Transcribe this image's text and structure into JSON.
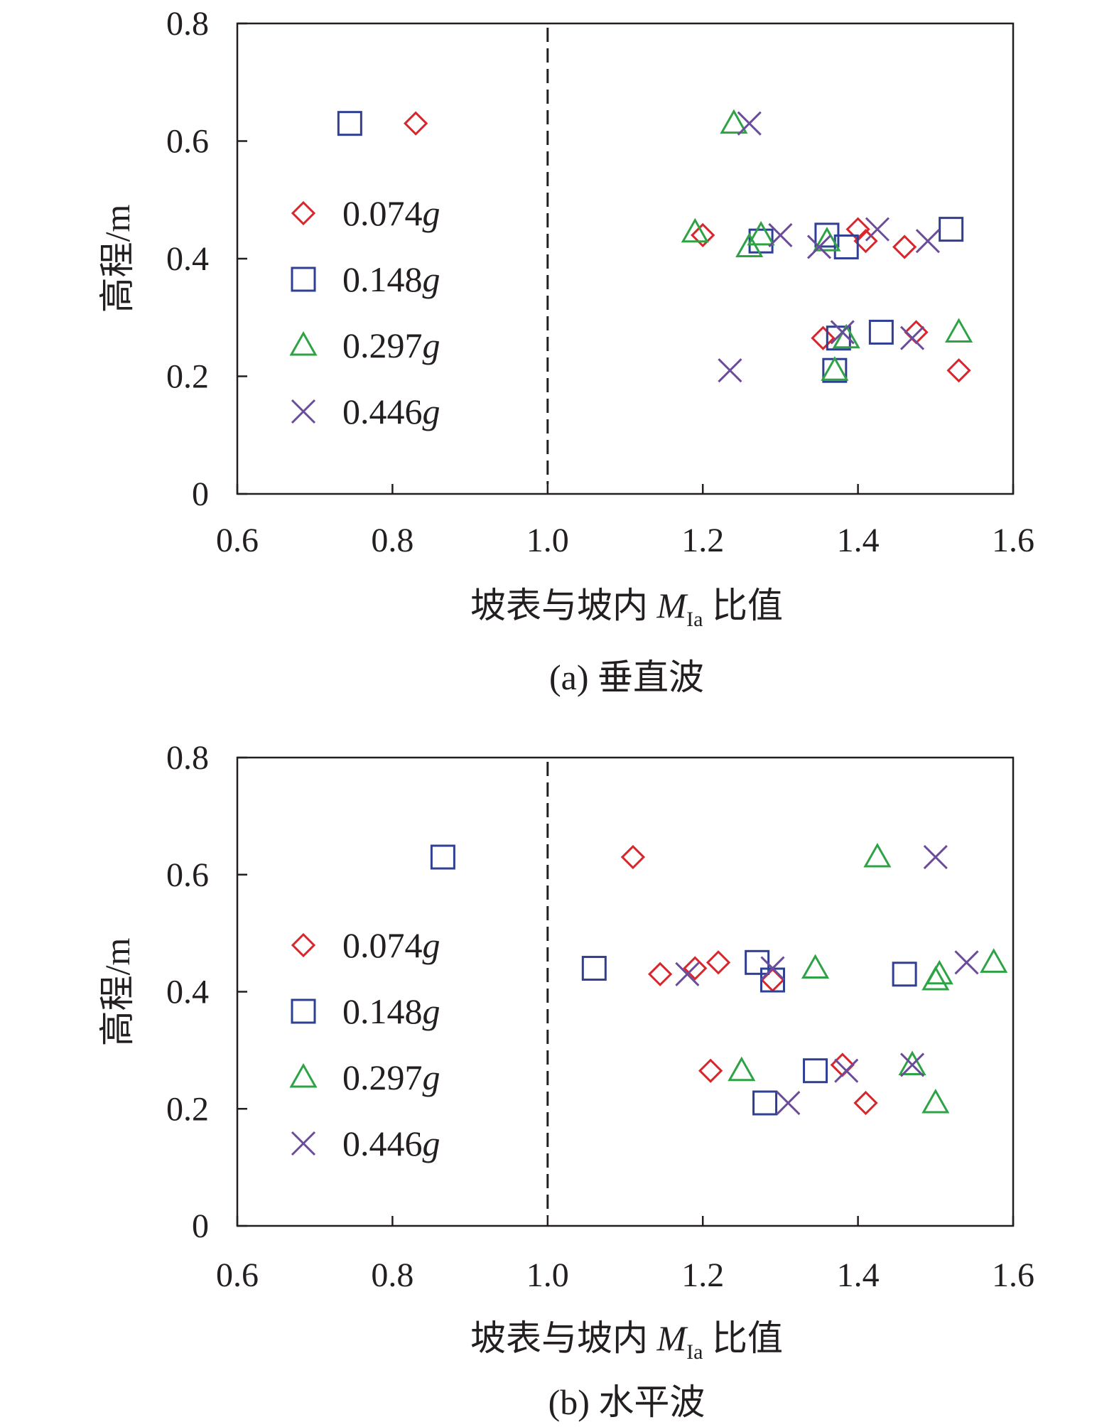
{
  "chart_data": [
    {
      "type": "scatter",
      "caption": "(a) 垂直波",
      "xlabel_prefix": "坡表与坡内 ",
      "xlabel_var": "M",
      "xlabel_sub": "Ia",
      "xlabel_suffix": " 比值",
      "ylabel": "高程/m",
      "xlim": [
        0.6,
        1.6
      ],
      "ylim": [
        0,
        0.8
      ],
      "xticks": [
        "0.6",
        "0.8",
        "1.0",
        "1.2",
        "1.4",
        "1.6"
      ],
      "yticks": [
        "0",
        "0.2",
        "0.4",
        "0.6",
        "0.8"
      ],
      "reference_line_x": 1.0,
      "legend_position": "left",
      "series": [
        {
          "name_value": "0.074",
          "name_unit": "g",
          "marker": "diamond",
          "color": "#d9262c",
          "points": [
            [
              0.83,
              0.63
            ],
            [
              1.2,
              0.44
            ],
            [
              1.4,
              0.45
            ],
            [
              1.41,
              0.43
            ],
            [
              1.46,
              0.42
            ],
            [
              1.355,
              0.265
            ],
            [
              1.475,
              0.275
            ],
            [
              1.53,
              0.21
            ]
          ]
        },
        {
          "name_value": "0.148",
          "name_unit": "g",
          "marker": "square",
          "color": "#2e3f94",
          "points": [
            [
              0.745,
              0.63
            ],
            [
              1.275,
              0.43
            ],
            [
              1.36,
              0.44
            ],
            [
              1.385,
              0.42
            ],
            [
              1.52,
              0.45
            ],
            [
              1.375,
              0.265
            ],
            [
              1.43,
              0.275
            ],
            [
              1.37,
              0.21
            ]
          ]
        },
        {
          "name_value": "0.297",
          "name_unit": "g",
          "marker": "triangle",
          "color": "#2ea345",
          "points": [
            [
              1.24,
              0.63
            ],
            [
              1.19,
              0.445
            ],
            [
              1.26,
              0.42
            ],
            [
              1.275,
              0.44
            ],
            [
              1.36,
              0.43
            ],
            [
              1.385,
              0.265
            ],
            [
              1.37,
              0.21
            ],
            [
              1.53,
              0.275
            ]
          ]
        },
        {
          "name_value": "0.446",
          "name_unit": "g",
          "marker": "x",
          "color": "#6b4c9a",
          "points": [
            [
              1.26,
              0.63
            ],
            [
              1.3,
              0.44
            ],
            [
              1.35,
              0.42
            ],
            [
              1.425,
              0.45
            ],
            [
              1.49,
              0.43
            ],
            [
              1.38,
              0.275
            ],
            [
              1.47,
              0.265
            ],
            [
              1.235,
              0.21
            ]
          ]
        }
      ]
    },
    {
      "type": "scatter",
      "caption": "(b) 水平波",
      "xlabel_prefix": "坡表与坡内 ",
      "xlabel_var": "M",
      "xlabel_sub": "Ia",
      "xlabel_suffix": " 比值",
      "ylabel": "高程/m",
      "xlim": [
        0.6,
        1.6
      ],
      "ylim": [
        0,
        0.8
      ],
      "xticks": [
        "0.6",
        "0.8",
        "1.0",
        "1.2",
        "1.4",
        "1.6"
      ],
      "yticks": [
        "0",
        "0.2",
        "0.4",
        "0.6",
        "0.8"
      ],
      "reference_line_x": 1.0,
      "legend_position": "left",
      "series": [
        {
          "name_value": "0.074",
          "name_unit": "g",
          "marker": "diamond",
          "color": "#d9262c",
          "points": [
            [
              1.11,
              0.63
            ],
            [
              1.145,
              0.43
            ],
            [
              1.19,
              0.44
            ],
            [
              1.22,
              0.45
            ],
            [
              1.29,
              0.42
            ],
            [
              1.21,
              0.265
            ],
            [
              1.38,
              0.275
            ],
            [
              1.41,
              0.21
            ]
          ]
        },
        {
          "name_value": "0.148",
          "name_unit": "g",
          "marker": "square",
          "color": "#2e3f94",
          "points": [
            [
              0.865,
              0.63
            ],
            [
              1.06,
              0.44
            ],
            [
              1.27,
              0.45
            ],
            [
              1.29,
              0.42
            ],
            [
              1.46,
              0.43
            ],
            [
              1.345,
              0.265
            ],
            [
              1.28,
              0.21
            ]
          ]
        },
        {
          "name_value": "0.297",
          "name_unit": "g",
          "marker": "triangle",
          "color": "#2ea345",
          "points": [
            [
              1.425,
              0.63
            ],
            [
              1.345,
              0.44
            ],
            [
              1.5,
              0.42
            ],
            [
              1.505,
              0.43
            ],
            [
              1.575,
              0.45
            ],
            [
              1.25,
              0.265
            ],
            [
              1.47,
              0.275
            ],
            [
              1.5,
              0.21
            ]
          ]
        },
        {
          "name_value": "0.446",
          "name_unit": "g",
          "marker": "x",
          "color": "#6b4c9a",
          "points": [
            [
              1.5,
              0.63
            ],
            [
              1.18,
              0.43
            ],
            [
              1.29,
              0.44
            ],
            [
              1.54,
              0.45
            ],
            [
              1.385,
              0.265
            ],
            [
              1.47,
              0.275
            ],
            [
              1.31,
              0.21
            ]
          ]
        }
      ]
    }
  ]
}
